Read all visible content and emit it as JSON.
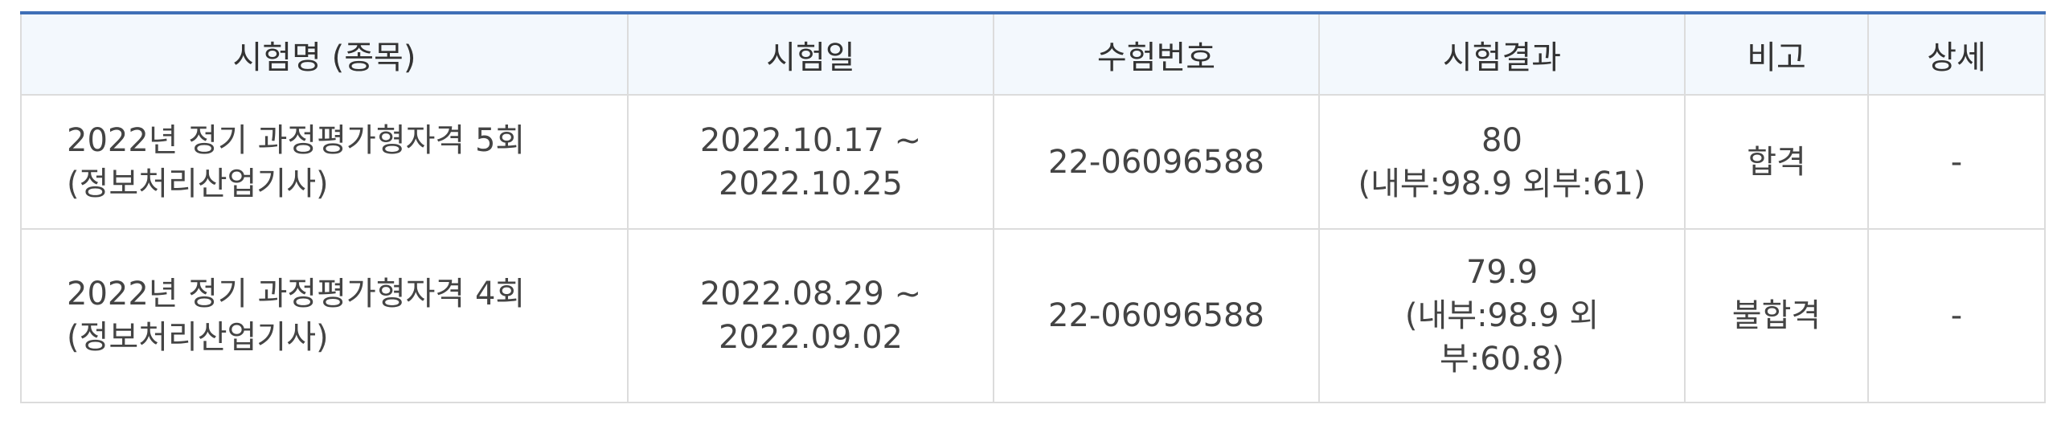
{
  "table": {
    "headers": [
      "시험명 (종목)",
      "시험일",
      "수험번호",
      "시험결과",
      "비고",
      "상세"
    ],
    "rows": [
      {
        "exam_name": "2022년 정기 과정평가형자격 5회",
        "exam_field": "(정보처리산업기사)",
        "date_start": "2022.10.17 ~",
        "date_end": "2022.10.25",
        "exam_number": "22-06096588",
        "score": "80",
        "score_detail": "(내부:98.9 외부:61)",
        "remark": "합격",
        "detail": "-"
      },
      {
        "exam_name": "2022년 정기 과정평가형자격 4회",
        "exam_field": "(정보처리산업기사)",
        "date_start": "2022.08.29 ~",
        "date_end": "2022.09.02",
        "exam_number": "22-06096588",
        "score": "79.9",
        "score_detail": "(내부:98.9 외부:60.8)",
        "remark": "불합격",
        "detail": "-"
      }
    ]
  },
  "colors": {
    "header_bg": "#f3f8fd",
    "top_border": "#3f6fb6",
    "grid": "#dcdcdc",
    "text": "#444444"
  }
}
